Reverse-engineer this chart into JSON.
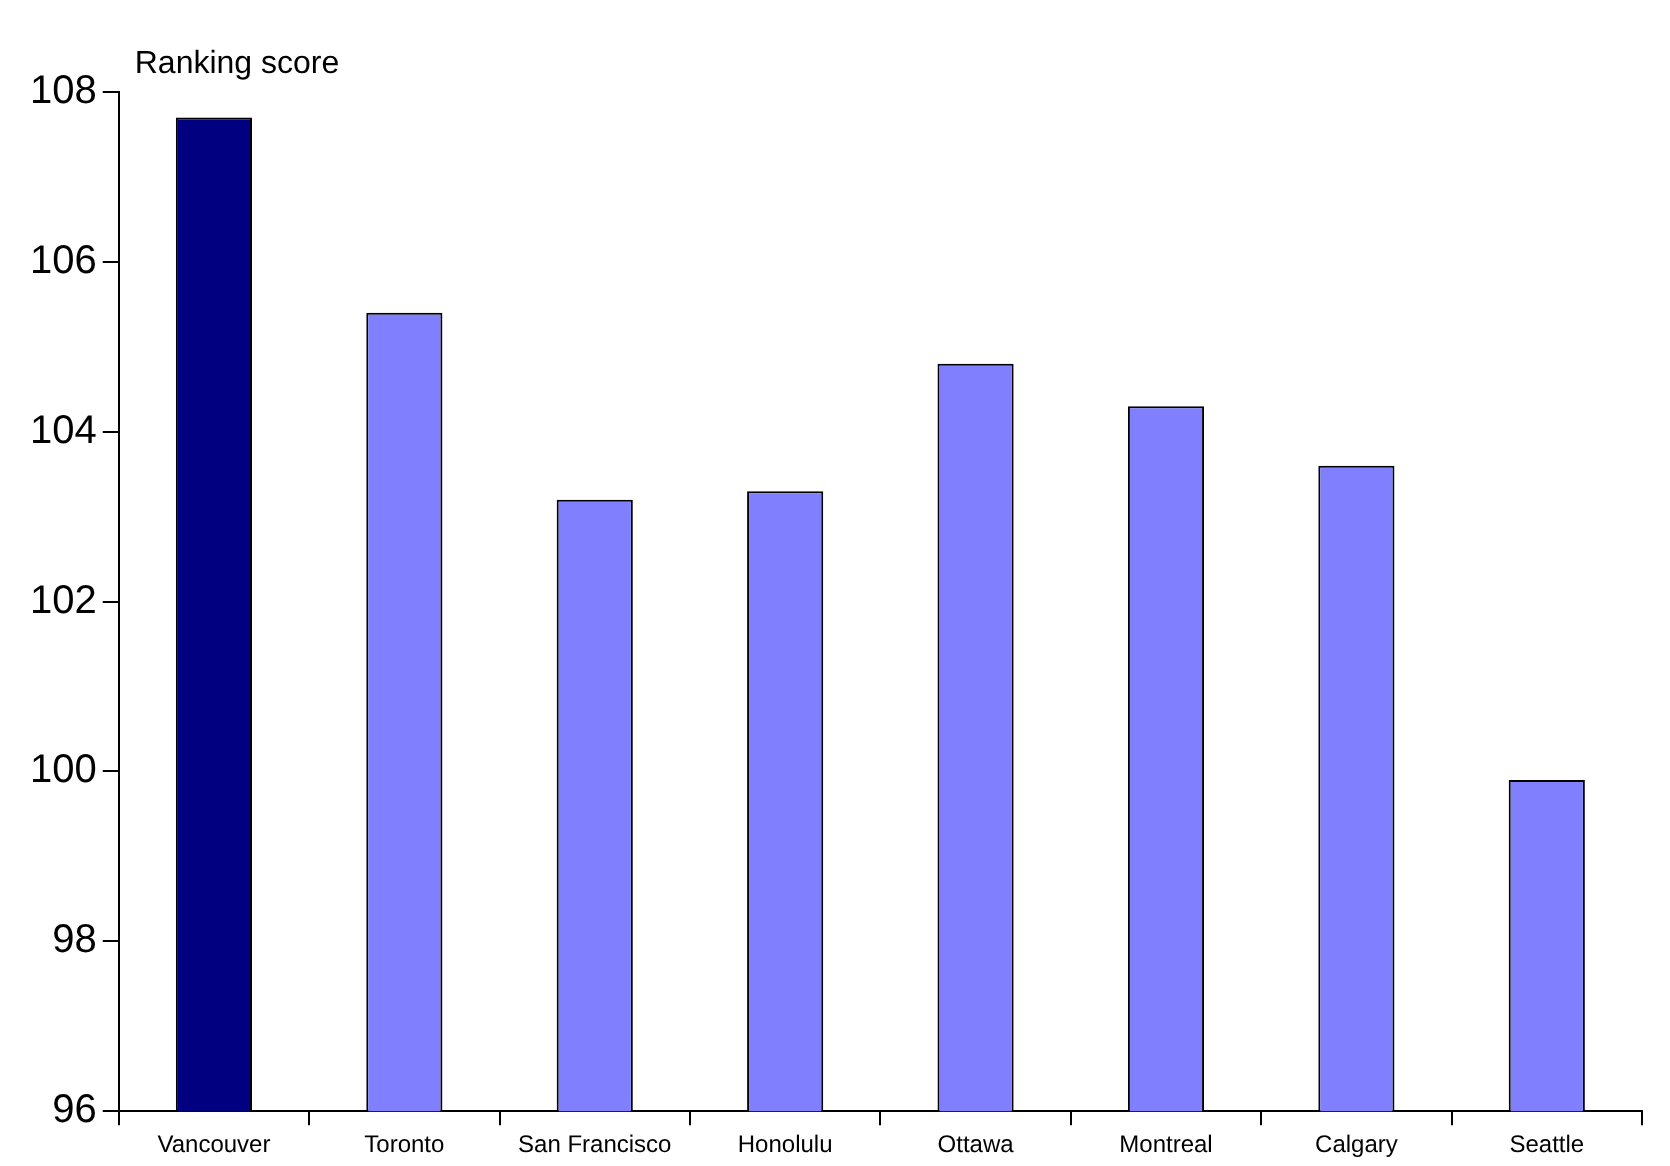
{
  "chart_data": {
    "type": "bar",
    "ylabel": "Ranking score",
    "categories": [
      "Vancouver",
      "Toronto",
      "San Francisco",
      "Honolulu",
      "Ottawa",
      "Montreal",
      "Calgary",
      "Seattle"
    ],
    "values": [
      107.7,
      105.4,
      103.2,
      103.3,
      104.8,
      104.3,
      103.6,
      99.9
    ],
    "colors": [
      "#000080",
      "#8080ff",
      "#8080ff",
      "#8080ff",
      "#8080ff",
      "#8080ff",
      "#8080ff",
      "#8080ff"
    ],
    "ylim": [
      96,
      108
    ],
    "yticks": [
      96,
      98,
      100,
      102,
      104,
      106,
      108
    ],
    "grid": false,
    "legend": false
  }
}
